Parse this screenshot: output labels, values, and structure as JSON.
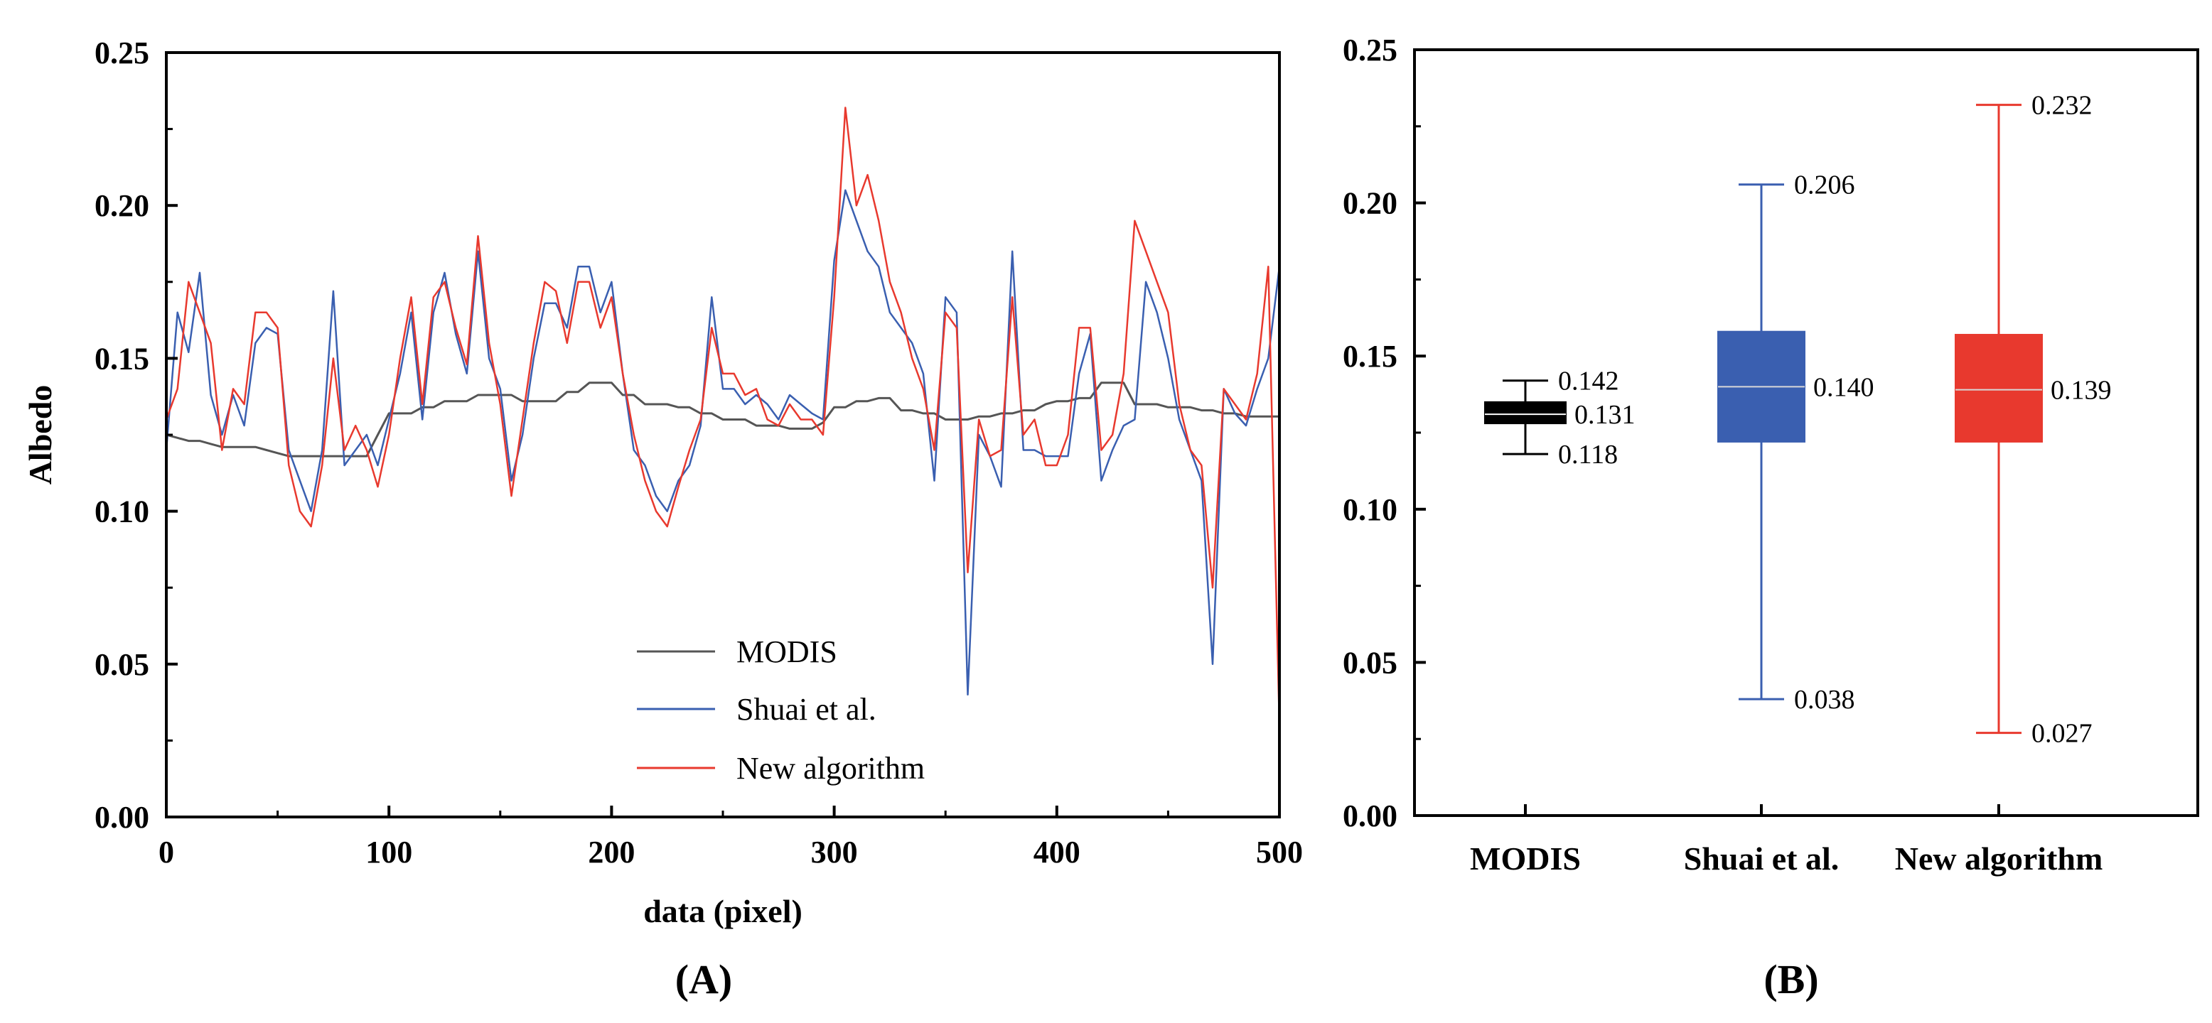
{
  "chart_data": [
    {
      "type": "line",
      "panel_label": "(A)",
      "xlabel": "data (pixel)",
      "ylabel": "Albedo",
      "xlim": [
        0,
        500
      ],
      "ylim": [
        0,
        0.25
      ],
      "x_ticks": [
        0,
        100,
        200,
        300,
        400,
        500
      ],
      "x_tick_labels": [
        "0",
        "100",
        "200",
        "300",
        "400",
        "500"
      ],
      "y_ticks": [
        0,
        0.05,
        0.1,
        0.15,
        0.2,
        0.25
      ],
      "y_tick_labels": [
        "0.00",
        "0.05",
        "0.10",
        "0.15",
        "0.20",
        "0.25"
      ],
      "legend_position": "bottom-center",
      "x": [
        0,
        5,
        10,
        15,
        20,
        25,
        30,
        35,
        40,
        45,
        50,
        55,
        60,
        65,
        70,
        75,
        80,
        85,
        90,
        95,
        100,
        105,
        110,
        115,
        120,
        125,
        130,
        135,
        140,
        145,
        150,
        155,
        160,
        165,
        170,
        175,
        180,
        185,
        190,
        195,
        200,
        205,
        210,
        215,
        220,
        225,
        230,
        235,
        240,
        245,
        250,
        255,
        260,
        265,
        270,
        275,
        280,
        285,
        290,
        295,
        300,
        305,
        310,
        315,
        320,
        325,
        330,
        335,
        340,
        345,
        350,
        355,
        360,
        365,
        370,
        375,
        380,
        385,
        390,
        395,
        400,
        405,
        410,
        415,
        420,
        425,
        430,
        435,
        440,
        445,
        450,
        455,
        460,
        465,
        470,
        475,
        480,
        485,
        490,
        495,
        500
      ],
      "series": [
        {
          "name": "MODIS",
          "color": "#555555",
          "values": [
            0.125,
            0.124,
            0.123,
            0.123,
            0.122,
            0.121,
            0.121,
            0.121,
            0.121,
            0.12,
            0.119,
            0.118,
            0.118,
            0.118,
            0.118,
            0.118,
            0.118,
            0.118,
            0.118,
            0.125,
            0.132,
            0.132,
            0.132,
            0.134,
            0.134,
            0.136,
            0.136,
            0.136,
            0.138,
            0.138,
            0.138,
            0.138,
            0.136,
            0.136,
            0.136,
            0.136,
            0.139,
            0.139,
            0.142,
            0.142,
            0.142,
            0.138,
            0.138,
            0.135,
            0.135,
            0.135,
            0.134,
            0.134,
            0.132,
            0.132,
            0.13,
            0.13,
            0.13,
            0.128,
            0.128,
            0.128,
            0.127,
            0.127,
            0.127,
            0.129,
            0.134,
            0.134,
            0.136,
            0.136,
            0.137,
            0.137,
            0.133,
            0.133,
            0.132,
            0.132,
            0.13,
            0.13,
            0.13,
            0.131,
            0.131,
            0.132,
            0.132,
            0.133,
            0.133,
            0.135,
            0.136,
            0.136,
            0.137,
            0.137,
            0.142,
            0.142,
            0.142,
            0.135,
            0.135,
            0.135,
            0.134,
            0.134,
            0.134,
            0.133,
            0.133,
            0.132,
            0.132,
            0.131,
            0.131,
            0.131,
            0.131
          ]
        },
        {
          "name": "Shuai et al.",
          "color": "#3a5fb0",
          "values": [
            0.12,
            0.165,
            0.152,
            0.178,
            0.138,
            0.125,
            0.138,
            0.128,
            0.155,
            0.16,
            0.158,
            0.12,
            0.11,
            0.1,
            0.12,
            0.172,
            0.115,
            0.12,
            0.125,
            0.115,
            0.13,
            0.145,
            0.165,
            0.13,
            0.165,
            0.178,
            0.158,
            0.145,
            0.185,
            0.15,
            0.14,
            0.11,
            0.125,
            0.15,
            0.168,
            0.168,
            0.16,
            0.18,
            0.18,
            0.165,
            0.175,
            0.145,
            0.12,
            0.115,
            0.105,
            0.1,
            0.11,
            0.115,
            0.128,
            0.17,
            0.14,
            0.14,
            0.135,
            0.138,
            0.135,
            0.13,
            0.138,
            0.135,
            0.132,
            0.13,
            0.182,
            0.205,
            0.195,
            0.185,
            0.18,
            0.165,
            0.16,
            0.155,
            0.145,
            0.11,
            0.17,
            0.165,
            0.04,
            0.125,
            0.118,
            0.108,
            0.185,
            0.12,
            0.12,
            0.118,
            0.118,
            0.118,
            0.145,
            0.158,
            0.11,
            0.12,
            0.128,
            0.13,
            0.175,
            0.165,
            0.15,
            0.13,
            0.12,
            0.11,
            0.05,
            0.14,
            0.132,
            0.128,
            0.14,
            0.15,
            0.18
          ]
        },
        {
          "name": "New algorithm",
          "color": "#e8392e",
          "values": [
            0.13,
            0.14,
            0.175,
            0.165,
            0.155,
            0.12,
            0.14,
            0.135,
            0.165,
            0.165,
            0.16,
            0.115,
            0.1,
            0.095,
            0.115,
            0.15,
            0.12,
            0.128,
            0.12,
            0.108,
            0.125,
            0.15,
            0.17,
            0.135,
            0.17,
            0.175,
            0.16,
            0.148,
            0.19,
            0.155,
            0.135,
            0.105,
            0.13,
            0.155,
            0.175,
            0.172,
            0.155,
            0.175,
            0.175,
            0.16,
            0.17,
            0.145,
            0.125,
            0.11,
            0.1,
            0.095,
            0.108,
            0.12,
            0.13,
            0.16,
            0.145,
            0.145,
            0.138,
            0.14,
            0.13,
            0.128,
            0.135,
            0.13,
            0.13,
            0.125,
            0.17,
            0.232,
            0.2,
            0.21,
            0.195,
            0.175,
            0.165,
            0.15,
            0.14,
            0.12,
            0.165,
            0.16,
            0.08,
            0.13,
            0.118,
            0.12,
            0.17,
            0.125,
            0.13,
            0.115,
            0.115,
            0.125,
            0.16,
            0.16,
            0.12,
            0.125,
            0.145,
            0.195,
            0.185,
            0.175,
            0.165,
            0.135,
            0.12,
            0.115,
            0.075,
            0.14,
            0.135,
            0.13,
            0.145,
            0.18,
            0.03
          ]
        }
      ]
    },
    {
      "type": "box",
      "panel_label": "(B)",
      "ylim": [
        0,
        0.25
      ],
      "y_ticks": [
        0,
        0.05,
        0.1,
        0.15,
        0.2,
        0.25
      ],
      "y_tick_labels": [
        "0.00",
        "0.05",
        "0.10",
        "0.15",
        "0.20",
        "0.25"
      ],
      "categories": [
        "MODIS",
        "Shuai et al.",
        "New algorithm"
      ],
      "boxes": [
        {
          "name": "MODIS",
          "color": "#000000",
          "median_color": "#ffffff",
          "min": 0.118,
          "q1": 0.128,
          "median": 0.131,
          "q3": 0.135,
          "max": 0.142,
          "labels": {
            "max": "0.142",
            "median": "0.131",
            "min": "0.118"
          }
        },
        {
          "name": "Shuai et al.",
          "color": "#3a5fb0",
          "median_color": "#d8d8d8",
          "min": 0.038,
          "q1": 0.122,
          "median": 0.14,
          "q3": 0.158,
          "max": 0.206,
          "labels": {
            "max": "0.206",
            "median": "0.140",
            "min": "0.038"
          }
        },
        {
          "name": "New algorithm",
          "color": "#e8392e",
          "median_color": "#d8d8d8",
          "min": 0.027,
          "q1": 0.122,
          "median": 0.139,
          "q3": 0.157,
          "max": 0.232,
          "labels": {
            "max": "0.232",
            "median": "0.139",
            "min": "0.027"
          }
        }
      ]
    }
  ]
}
